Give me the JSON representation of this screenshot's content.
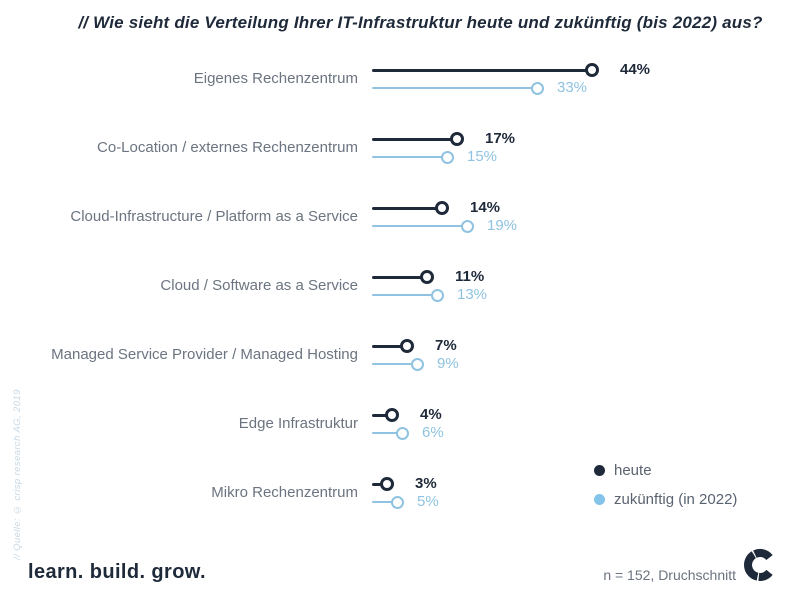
{
  "title": "// Wie sieht die Verteilung Ihrer IT-Infrastruktur heute und zukünftig (bis 2022) aus?",
  "chart_data": {
    "type": "bar",
    "style": "horizontal-lollipop-dumbbell",
    "categories": [
      "Eigenes Rechenzentrum",
      "Co-Location / externes Rechenzentrum",
      "Cloud-Infrastructure / Platform as a Service",
      "Cloud / Software as a Service",
      "Managed Service Provider / Managed Hosting",
      "Edge Infrastruktur",
      "Mikro Rechenzentrum"
    ],
    "series": [
      {
        "name": "heute",
        "color": "#1e2939",
        "values": [
          44,
          17,
          14,
          11,
          7,
          4,
          3
        ]
      },
      {
        "name": "zukünftig (in 2022)",
        "color": "#8fc3e1",
        "values": [
          33,
          15,
          19,
          13,
          9,
          6,
          5
        ]
      }
    ],
    "value_suffix": "%",
    "xlim": [
      0,
      50
    ],
    "grid": false,
    "legend_position": "right-bottom"
  },
  "legend": {
    "items": [
      {
        "label": "heute",
        "color": "#1e2939"
      },
      {
        "label": "zukünftig (in 2022)",
        "color": "#85c4ea"
      }
    ]
  },
  "source_note": "// Quelle: © crisp research AG, 2019",
  "footer": {
    "tagline": "learn. build. grow.",
    "sample_note": "n = 152, Druchschnitt",
    "logo": "crisp-research-logo"
  },
  "colors": {
    "background": "#ffffff",
    "title": "#1e2939",
    "category_label": "#6b7480",
    "series_today": "#1e2939",
    "series_future": "#8fc3e1",
    "legend_text": "#5a6370",
    "source_note": "#c8d8e4",
    "footer_note": "#6b7480"
  }
}
